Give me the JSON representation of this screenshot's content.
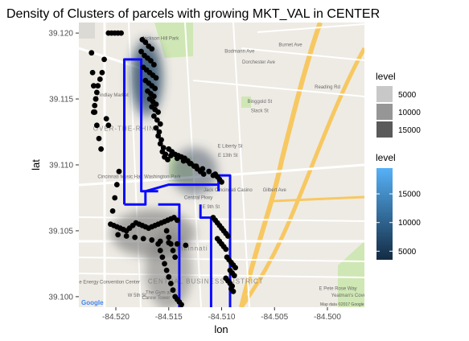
{
  "chart_data": {
    "type": "scatter",
    "title": "Density of Clusters of parcels with growing MKT_VAL in CENTER",
    "xlabel": "lon",
    "ylabel": "lat",
    "xlim": [
      -84.5235,
      -84.4965
    ],
    "ylim": [
      39.0992,
      39.1208
    ],
    "x_ticks": [
      -84.52,
      -84.515,
      -84.51,
      -84.505,
      -84.5
    ],
    "x_tick_labels": [
      "-84.520",
      "-84.515",
      "-84.510",
      "-84.505",
      "-84.500"
    ],
    "y_ticks": [
      39.1,
      39.105,
      39.11,
      39.115,
      39.12
    ],
    "y_tick_labels": [
      "39.100",
      "39.105",
      "39.110",
      "39.115",
      "39.120"
    ],
    "grid": false,
    "basemap": true,
    "legend_placement": "right",
    "legends": [
      {
        "kind": "alpha",
        "title": "level",
        "entries": [
          {
            "label": "5000",
            "color": "#c8c8c8"
          },
          {
            "label": "10000",
            "color": "#969696"
          },
          {
            "label": "15000",
            "color": "#5a5a5a"
          }
        ]
      },
      {
        "kind": "colorbar",
        "title": "level",
        "low_color": "#132b43",
        "high_color": "#56b1f7",
        "range": [
          3500,
          19500
        ],
        "ticks": [
          5000,
          10000,
          15000
        ],
        "tick_labels": [
          "5000",
          "10000",
          "15000"
        ]
      }
    ],
    "density_contours": [
      {
        "cx": -84.5171,
        "cy": 39.1166,
        "rx": 0.0016,
        "ry": 0.003,
        "level": 18000,
        "fill": "#1d3a57"
      },
      {
        "cx": -84.5171,
        "cy": 39.1166,
        "rx": 0.0012,
        "ry": 0.0022,
        "level": 19000,
        "fill": "#24486b"
      },
      {
        "cx": -84.5126,
        "cy": 39.1095,
        "rx": 0.0022,
        "ry": 0.0018,
        "level": 8000,
        "fill": "#4a5a6b"
      },
      {
        "cx": -84.5165,
        "cy": 39.1048,
        "rx": 0.004,
        "ry": 0.0018,
        "level": 6000,
        "fill": "#6a6a6a"
      },
      {
        "cx": -84.515,
        "cy": 39.102,
        "rx": 0.0022,
        "ry": 0.003,
        "level": 5000,
        "fill": "#7a7a7a"
      }
    ],
    "series": [
      {
        "type": "points",
        "color": "#000000",
        "x": [
          -84.5207,
          -84.5204,
          -84.5201,
          -84.5198,
          -84.5195,
          -84.5223,
          -84.5222,
          -84.5221,
          -84.5219,
          -84.522,
          -84.5218,
          -84.5216,
          -84.5214,
          -84.5175,
          -84.5172,
          -84.5169,
          -84.5166,
          -84.5176,
          -84.5173,
          -84.517,
          -84.5167,
          -84.5164,
          -84.5174,
          -84.5171,
          -84.5168,
          -84.5165,
          -84.5162,
          -84.5172,
          -84.5169,
          -84.5166,
          -84.5163,
          -84.517,
          -84.5167,
          -84.5164,
          -84.5168,
          -84.5165,
          -84.5162,
          -84.5166,
          -84.5163,
          -84.516,
          -84.5164,
          -84.5161,
          -84.5158,
          -84.5162,
          -84.5159,
          -84.516,
          -84.5157,
          -84.5158,
          -84.5155,
          -84.5156,
          -84.5153,
          -84.5154,
          -84.5151,
          -84.515,
          -84.5147,
          -84.5144,
          -84.5141,
          -84.5138,
          -84.5135,
          -84.5132,
          -84.5129,
          -84.5126,
          -84.5123,
          -84.512,
          -84.5117,
          -84.5148,
          -84.5142,
          -84.5136,
          -84.513,
          -84.5124,
          -84.5118,
          -84.5112,
          -84.5106,
          -84.5104,
          -84.5102,
          -84.51,
          -84.5108,
          -84.5205,
          -84.5202,
          -84.5199,
          -84.5196,
          -84.5193,
          -84.519,
          -84.5187,
          -84.5184,
          -84.5181,
          -84.5178,
          -84.5175,
          -84.5172,
          -84.5169,
          -84.5166,
          -84.5163,
          -84.516,
          -84.5157,
          -84.5154,
          -84.5151,
          -84.5148,
          -84.5145,
          -84.5142,
          -84.5198,
          -84.519,
          -84.5182,
          -84.5174,
          -84.5166,
          -84.5158,
          -84.515,
          -84.5142,
          -84.5134,
          -84.5203,
          -84.5201,
          -84.5199,
          -84.5197,
          -84.516,
          -84.5158,
          -84.5156,
          -84.5154,
          -84.5152,
          -84.515,
          -84.5148,
          -84.5146,
          -84.5144,
          -84.5142,
          -84.514,
          -84.5138,
          -84.5152,
          -84.515,
          -84.5148,
          -84.5146,
          -84.5144,
          -84.5108,
          -84.5106,
          -84.5104,
          -84.5102,
          -84.51,
          -84.5098,
          -84.5096,
          -84.5094,
          -84.5104,
          -84.5102,
          -84.51,
          -84.5098,
          -84.5096,
          -84.5095,
          -84.5093,
          -84.5091,
          -84.5089,
          -84.5087,
          -84.5092,
          -84.509,
          -84.5088,
          -84.5096,
          -84.5094,
          -84.5092,
          -84.509,
          -84.5091,
          -84.5089,
          -84.5211,
          -84.5213,
          -84.5215,
          -84.5217,
          -84.5218,
          -84.5219,
          -84.522,
          -84.5221,
          -84.5209,
          -84.5207
        ],
        "y": [
          39.12,
          39.12,
          39.12,
          39.12,
          39.12,
          39.1185,
          39.117,
          39.116,
          39.115,
          39.114,
          39.113,
          39.112,
          39.1112,
          39.1195,
          39.1193,
          39.119,
          39.1188,
          39.1186,
          39.1183,
          39.1181,
          39.1179,
          39.1176,
          39.1174,
          39.1172,
          39.117,
          39.1168,
          39.1166,
          39.1164,
          39.1162,
          39.116,
          39.1158,
          39.1156,
          39.1154,
          39.1152,
          39.115,
          39.1148,
          39.1146,
          39.1144,
          39.1142,
          39.114,
          39.1137,
          39.1134,
          39.1131,
          39.1128,
          39.1125,
          39.1122,
          39.1119,
          39.1116,
          39.1113,
          39.111,
          39.1108,
          39.1106,
          39.1104,
          39.1112,
          39.111,
          39.1108,
          39.1107,
          39.1106,
          39.1105,
          39.1103,
          39.1101,
          39.1099,
          39.1097,
          39.1095,
          39.1093,
          39.1107,
          39.1105,
          39.1103,
          39.1101,
          39.1099,
          39.1097,
          39.1095,
          39.1093,
          39.1091,
          39.1089,
          39.1087,
          39.1092,
          39.1055,
          39.1054,
          39.1053,
          39.1052,
          39.1051,
          39.105,
          39.1052,
          39.1054,
          39.1056,
          39.1055,
          39.1054,
          39.1053,
          39.1052,
          39.1053,
          39.1054,
          39.1055,
          39.1056,
          39.1057,
          39.1058,
          39.1059,
          39.106,
          39.1058,
          39.1047,
          39.1046,
          39.1045,
          39.1044,
          39.1043,
          39.1042,
          39.1041,
          39.104,
          39.1039,
          39.1065,
          39.1075,
          39.1085,
          39.1095,
          39.104,
          39.1035,
          39.103,
          39.1025,
          39.102,
          39.1015,
          39.101,
          39.1005,
          39.1,
          39.0998,
          39.0996,
          39.0994,
          39.105,
          39.1045,
          39.104,
          39.1035,
          39.103,
          39.106,
          39.1058,
          39.1056,
          39.1054,
          39.1052,
          39.105,
          39.1048,
          39.1046,
          39.1044,
          39.1042,
          39.104,
          39.1038,
          39.1036,
          39.103,
          39.1028,
          39.1026,
          39.1024,
          39.1022,
          39.102,
          39.1018,
          39.1016,
          39.1014,
          39.1012,
          39.101,
          39.1008,
          39.1006,
          39.1004,
          39.118,
          39.117,
          39.1165,
          39.116,
          39.1155,
          39.115,
          39.1145,
          39.114,
          39.1135,
          39.113
        ]
      },
      {
        "type": "path",
        "color": "#0a0aff",
        "x": [
          -84.5192,
          -84.5178,
          -84.5177,
          -84.5172,
          -84.517,
          -84.5167,
          -84.5164,
          -84.5162,
          -84.516,
          -84.5158,
          -84.5156,
          -84.5154,
          -84.5152,
          -84.515,
          -84.5148,
          -84.5146,
          -84.5144,
          -84.5142,
          -84.514,
          -84.5138,
          -84.5136,
          -84.5134,
          -84.5132,
          -84.513,
          -84.5128,
          -84.5126,
          -84.5124,
          -84.5122,
          -84.512,
          -84.5118,
          -84.5116,
          -84.5114,
          -84.5112,
          -84.511,
          -84.5108,
          -84.5106,
          -84.5104,
          -84.5103,
          -84.5103,
          -84.5103
        ],
        "y": [
          39.118,
          39.118,
          39.11,
          39.11,
          39.11,
          39.108,
          39.108,
          39.108,
          39.108,
          39.108,
          39.108,
          39.108,
          39.108,
          39.108,
          39.108,
          39.108,
          39.108,
          39.108,
          39.108,
          39.108,
          39.108,
          39.108,
          39.108,
          39.108,
          39.108,
          39.108,
          39.108,
          39.108,
          39.108,
          39.108,
          39.108,
          39.108,
          39.108,
          39.108,
          39.108,
          39.108,
          39.108,
          39.108,
          39.106,
          39.0992
        ]
      }
    ],
    "routes": [
      {
        "x": [
          -84.5192,
          -84.5192,
          -84.5176,
          -84.5176,
          -84.5176,
          -84.516,
          -84.516
        ],
        "y": [
          39.107,
          39.118,
          39.118,
          39.1175,
          39.108,
          39.108,
          39.108
        ]
      },
      {
        "x": [
          -84.5192,
          -84.5172,
          -84.5172,
          -84.515,
          -84.5103,
          -84.5103
        ],
        "y": [
          39.107,
          39.107,
          39.108,
          39.1085,
          39.1085,
          39.108
        ]
      },
      {
        "x": [
          -84.5103,
          -84.5103,
          -84.5092,
          -84.5092
        ],
        "y": [
          39.1085,
          39.1092,
          39.1092,
          39.0992
        ]
      },
      {
        "x": [
          -84.516,
          -84.514,
          -84.514
        ],
        "y": [
          39.107,
          39.107,
          39.0992
        ]
      },
      {
        "x": [
          -84.512,
          -84.512,
          -84.511,
          -84.511
        ],
        "y": [
          39.107,
          39.106,
          39.106,
          39.0992
        ]
      }
    ]
  },
  "map": {
    "labels": [
      {
        "text": "Jackson Hill Park",
        "lon": -84.5158,
        "lat": 39.1195
      },
      {
        "text": "Bodmann Ave",
        "lon": -84.5083,
        "lat": 39.1185
      },
      {
        "text": "Dorchester Ave",
        "lon": -84.5065,
        "lat": 39.1177
      },
      {
        "text": "Burnet Ave",
        "lon": -84.5035,
        "lat": 39.119
      },
      {
        "text": "Reading Rd",
        "lon": -84.5,
        "lat": 39.1158
      },
      {
        "text": "Findlay Market",
        "lon": -84.5203,
        "lat": 39.1152
      },
      {
        "text": "OVER-THE-RHINE",
        "lon": -84.519,
        "lat": 39.1126
      },
      {
        "text": "Binggold St",
        "lon": -84.5064,
        "lat": 39.1147
      },
      {
        "text": "Slack St",
        "lon": -84.5064,
        "lat": 39.114
      },
      {
        "text": "E Liberty St",
        "lon": -84.5092,
        "lat": 39.1113
      },
      {
        "text": "E 13th St",
        "lon": -84.5094,
        "lat": 39.1106
      },
      {
        "text": "Cincinnati Music Hall",
        "lon": -84.5196,
        "lat": 39.109
      },
      {
        "text": "Washington Park",
        "lon": -84.5156,
        "lat": 39.109
      },
      {
        "text": "Jack Cincinnati Casino",
        "lon": -84.5094,
        "lat": 39.108
      },
      {
        "text": "Central Pkwy",
        "lon": -84.5122,
        "lat": 39.1074
      },
      {
        "text": "E 9th St",
        "lon": -84.511,
        "lat": 39.1067
      },
      {
        "text": "Cincinnati",
        "lon": -84.513,
        "lat": 39.1035
      },
      {
        "text": "CENTRAL BUSINESS DISTRICT",
        "lon": -84.5115,
        "lat": 39.101
      },
      {
        "text": "Duke Energy Convention Center",
        "lon": -84.521,
        "lat": 39.101
      },
      {
        "text": "W 5th St",
        "lon": -84.518,
        "lat": 39.1
      },
      {
        "text": "Carew Tower",
        "lon": -84.5162,
        "lat": 39.0998
      },
      {
        "text": "The Gym at",
        "lon": -84.516,
        "lat": 39.1002
      },
      {
        "text": "E Pete Rose Way",
        "lon": -84.499,
        "lat": 39.1005
      },
      {
        "text": "Yeatman's Cove",
        "lon": -84.498,
        "lat": 39.1
      },
      {
        "text": "Gilbert Ave",
        "lon": -84.505,
        "lat": 39.108
      }
    ],
    "google_text": "Google",
    "attribution": "Map data ©2017 Google"
  }
}
